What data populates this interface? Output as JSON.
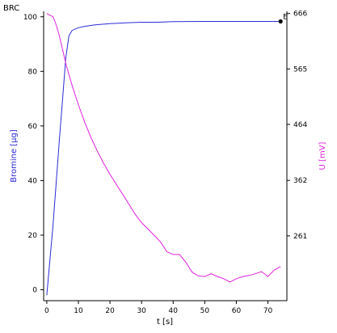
{
  "chart_data": {
    "type": "line",
    "title": "BRC",
    "xlabel": "t [s]",
    "ylabel_left": "Bromine [µg]",
    "ylabel_right": "U [mV]",
    "end_marker_label": "E",
    "xlim": [
      -1,
      76
    ],
    "ylim_left": [
      -4,
      102
    ],
    "ylim_right": [
      143,
      670
    ],
    "x_ticks": [
      0,
      10,
      20,
      30,
      40,
      50,
      60,
      70
    ],
    "y_left_ticks": [
      0,
      20,
      40,
      60,
      80,
      100
    ],
    "y_right_ticks": [
      261,
      362,
      464,
      565,
      666
    ],
    "grid": false,
    "series": [
      {
        "axis": "left",
        "color": "#2b2bd6",
        "x": [
          0,
          2,
          4,
          5,
          6,
          7,
          8,
          10,
          12,
          15,
          20,
          25,
          30,
          35,
          40,
          50,
          60,
          70,
          74
        ],
        "y": [
          -2,
          24,
          55,
          70,
          85,
          93,
          95,
          96,
          96.5,
          97,
          97.5,
          97.8,
          98,
          98,
          98.2,
          98.3,
          98.3,
          98.3,
          98.3
        ]
      },
      {
        "axis": "right",
        "color": "#e020e0",
        "x": [
          0,
          2,
          3,
          4,
          5,
          6,
          7,
          8,
          10,
          12,
          14,
          16,
          18,
          20,
          22,
          25,
          28,
          30,
          33,
          36,
          38,
          40,
          42,
          44,
          46,
          48,
          50,
          52,
          54,
          56,
          58,
          60,
          62,
          64,
          66,
          68,
          70,
          72,
          74
        ],
        "y": [
          666,
          660,
          645,
          625,
          600,
          575,
          555,
          535,
          500,
          468,
          440,
          415,
          393,
          373,
          355,
          328,
          300,
          285,
          268,
          250,
          232,
          227,
          227,
          213,
          195,
          188,
          187,
          192,
          187,
          183,
          177,
          183,
          187,
          189,
          192,
          196,
          187,
          199,
          205
        ]
      }
    ]
  }
}
